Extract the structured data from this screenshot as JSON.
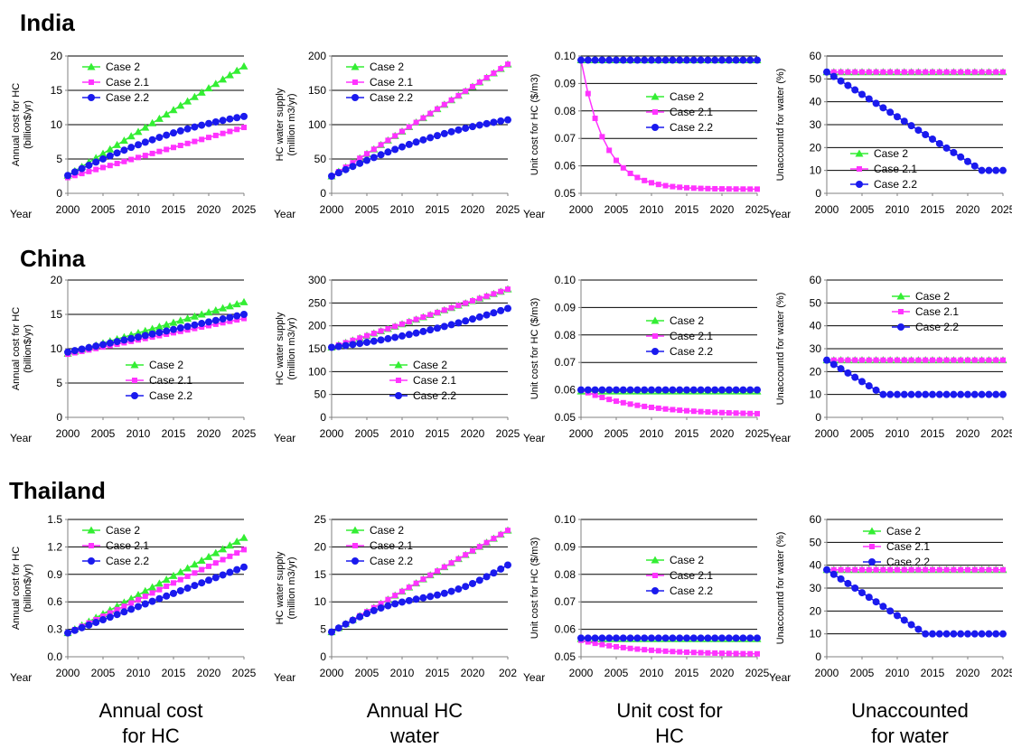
{
  "colors": {
    "case2": "#33ee33",
    "case21": "#ff33ff",
    "case22": "#1a1aee",
    "grid": "#000000",
    "axis": "#808080"
  },
  "row_titles": [
    "India",
    "China",
    "Thailand"
  ],
  "column_titles": [
    {
      "line1": "Annual cost",
      "line2": "for HC"
    },
    {
      "line1": "Annual HC",
      "line2": "water"
    },
    {
      "line1": "Unit cost for",
      "line2": "HC"
    },
    {
      "line1": "Unaccounted",
      "line2": "for water"
    }
  ],
  "chart_data": [
    {
      "id": "india-annual-cost",
      "type": "line",
      "row": 0,
      "col": 0,
      "ylabel_lines": [
        "Annual cost for HC",
        "(billion$/yr)"
      ],
      "xlabel": "Year",
      "ylim": [
        0,
        20
      ],
      "yticks": [
        "0",
        "5",
        "10",
        "15",
        "20"
      ],
      "xticks": [
        "2000",
        "2005",
        "2010",
        "2015",
        "2020",
        "2025"
      ],
      "legend": {
        "pos": "top-left"
      },
      "series": [
        {
          "name": "Case 2",
          "start": 2.6,
          "end": 18.5,
          "curve": "linear"
        },
        {
          "name": "Case 2.1",
          "start": 2.3,
          "end": 9.6,
          "curve": "linear"
        },
        {
          "name": "Case 2.2",
          "start": 2.6,
          "end": 11.2,
          "curve": "concave"
        }
      ]
    },
    {
      "id": "india-annual-water",
      "type": "line",
      "row": 0,
      "col": 1,
      "ylabel_lines": [
        "HC water supply",
        "(million m3/yr)"
      ],
      "xlabel": "Year",
      "ylim": [
        0,
        200
      ],
      "yticks": [
        "0",
        "50",
        "100",
        "150",
        "200"
      ],
      "xticks": [
        "2000",
        "2005",
        "2010",
        "2015",
        "2020",
        "2025"
      ],
      "legend": {
        "pos": "top-left"
      },
      "series": [
        {
          "name": "Case 2",
          "start": 25,
          "end": 188,
          "curve": "linear"
        },
        {
          "name": "Case 2.1",
          "start": 25,
          "end": 188,
          "curve": "linear"
        },
        {
          "name": "Case 2.2",
          "start": 25,
          "end": 107,
          "curve": "concave"
        }
      ]
    },
    {
      "id": "india-unit-cost",
      "type": "line",
      "row": 0,
      "col": 2,
      "ylabel_lines": [
        "Unit cost for HC ($/m3)"
      ],
      "xlabel": "Year",
      "ylim": [
        0.05,
        0.1
      ],
      "yticks": [
        "0.05",
        "0.06",
        "0.07",
        "0.08",
        "0.09",
        "0.10"
      ],
      "xticks": [
        "2000",
        "2005",
        "2010",
        "2015",
        "2020",
        "2025"
      ],
      "legend": {
        "pos": "right-middle"
      },
      "series": [
        {
          "name": "Case 2",
          "start": 0.0985,
          "end": 0.0985,
          "curve": "flat"
        },
        {
          "name": "Case 2.1",
          "start": 0.0985,
          "end": 0.0515,
          "curve": "decay",
          "k": 0.3
        },
        {
          "name": "Case 2.2",
          "start": 0.0985,
          "end": 0.0985,
          "curve": "flat"
        }
      ]
    },
    {
      "id": "india-unaccounted",
      "type": "line",
      "row": 0,
      "col": 3,
      "ylabel_lines": [
        "Unaccountd for water (%)"
      ],
      "xlabel": "Year",
      "ylim": [
        0,
        60
      ],
      "yticks": [
        "0",
        "10",
        "20",
        "30",
        "40",
        "50",
        "60"
      ],
      "xticks": [
        "2000",
        "2005",
        "2010",
        "2015",
        "2020",
        "2025"
      ],
      "legend": {
        "pos": "bottom-left"
      },
      "series": [
        {
          "name": "Case 2",
          "start": 53,
          "end": 53,
          "curve": "flat"
        },
        {
          "name": "Case 2.1",
          "start": 53,
          "end": 53,
          "curve": "flat"
        },
        {
          "name": "Case 2.2",
          "start": 53,
          "end": 10,
          "curve": "ramp",
          "until": 2022
        }
      ]
    },
    {
      "id": "china-annual-cost",
      "type": "line",
      "row": 1,
      "col": 0,
      "ylabel_lines": [
        "Annual cost for HC",
        "(billion$/yr)"
      ],
      "xlabel": "Year",
      "ylim": [
        0,
        20
      ],
      "yticks": [
        "0",
        "5",
        "10",
        "15",
        "20"
      ],
      "xticks": [
        "2000",
        "2005",
        "2010",
        "2015",
        "2020",
        "2025"
      ],
      "legend": {
        "pos": "bottom-middle"
      },
      "series": [
        {
          "name": "Case 2",
          "start": 9.3,
          "end": 16.8,
          "curve": "linear"
        },
        {
          "name": "Case 2.1",
          "start": 9.2,
          "end": 14.4,
          "curve": "linear"
        },
        {
          "name": "Case 2.2",
          "start": 9.5,
          "end": 15.0,
          "curve": "linear"
        }
      ]
    },
    {
      "id": "china-annual-water",
      "type": "line",
      "row": 1,
      "col": 1,
      "ylabel_lines": [
        "HC water supply",
        "(million m3/yr)"
      ],
      "xlabel": "Year",
      "ylim": [
        0,
        300
      ],
      "yticks": [
        "0",
        "50",
        "100",
        "150",
        "200",
        "250",
        "300"
      ],
      "xticks": [
        "2000",
        "2005",
        "2010",
        "2015",
        "2020",
        "2025"
      ],
      "legend": {
        "pos": "bottom-middle"
      },
      "series": [
        {
          "name": "Case 2",
          "start": 153,
          "end": 280,
          "curve": "linear"
        },
        {
          "name": "Case 2.1",
          "start": 153,
          "end": 280,
          "curve": "linear"
        },
        {
          "name": "Case 2.2",
          "start": 153,
          "end": 238,
          "curve": "convex"
        }
      ]
    },
    {
      "id": "china-unit-cost",
      "type": "line",
      "row": 1,
      "col": 2,
      "ylabel_lines": [
        "Unit cost for HC ($/m3)"
      ],
      "xlabel": "Year",
      "ylim": [
        0.05,
        0.1
      ],
      "yticks": [
        "0.05",
        "0.06",
        "0.07",
        "0.08",
        "0.09",
        "0.10"
      ],
      "xticks": [
        "2000",
        "2005",
        "2010",
        "2015",
        "2020",
        "2025"
      ],
      "legend": {
        "pos": "right-middle"
      },
      "series": [
        {
          "name": "Case 2",
          "start": 0.0595,
          "end": 0.0595,
          "curve": "flat"
        },
        {
          "name": "Case 2.1",
          "start": 0.06,
          "end": 0.0509,
          "curve": "decay",
          "k": 0.12
        },
        {
          "name": "Case 2.2",
          "start": 0.06,
          "end": 0.06,
          "curve": "flat"
        }
      ]
    },
    {
      "id": "china-unaccounted",
      "type": "line",
      "row": 1,
      "col": 3,
      "ylabel_lines": [
        "Unaccountd for water (%)"
      ],
      "xlabel": "Year",
      "ylim": [
        0,
        60
      ],
      "yticks": [
        "0",
        "10",
        "20",
        "30",
        "40",
        "50",
        "60"
      ],
      "xticks": [
        "2000",
        "2005",
        "2010",
        "2015",
        "2020",
        "2025"
      ],
      "legend": {
        "pos": "top-right"
      },
      "series": [
        {
          "name": "Case 2",
          "start": 25,
          "end": 25,
          "curve": "flat"
        },
        {
          "name": "Case 2.1",
          "start": 25,
          "end": 25,
          "curve": "flat"
        },
        {
          "name": "Case 2.2",
          "start": 25,
          "end": 10,
          "curve": "ramp",
          "until": 2008
        }
      ]
    },
    {
      "id": "thailand-annual-cost",
      "type": "line",
      "row": 2,
      "col": 0,
      "ylabel_lines": [
        "Annual cost for HC",
        "(billion$/yr)"
      ],
      "xlabel": "Year",
      "ylim": [
        0,
        1.5
      ],
      "yticks": [
        "0.0",
        "0.3",
        "0.6",
        "0.9",
        "1.2",
        "1.5"
      ],
      "xticks": [
        "2000",
        "2005",
        "2010",
        "2015",
        "2020",
        "2025"
      ],
      "legend": {
        "pos": "top-left"
      },
      "series": [
        {
          "name": "Case 2",
          "start": 0.26,
          "end": 1.3,
          "curve": "linear"
        },
        {
          "name": "Case 2.1",
          "start": 0.26,
          "end": 1.17,
          "curve": "linear"
        },
        {
          "name": "Case 2.2",
          "start": 0.26,
          "end": 0.98,
          "curve": "linear"
        }
      ]
    },
    {
      "id": "thailand-annual-water",
      "type": "line",
      "row": 2,
      "col": 1,
      "ylabel_lines": [
        "HC water supply",
        "(million m3/yr)"
      ],
      "xlabel": "Year",
      "ylim": [
        0,
        25
      ],
      "yticks": [
        "0",
        "5",
        "10",
        "15",
        "20",
        "25"
      ],
      "xticks": [
        "2000",
        "2005",
        "2010",
        "2015",
        "2020",
        "202"
      ],
      "legend": {
        "pos": "top-left"
      },
      "series": [
        {
          "name": "Case 2",
          "start": 4.5,
          "end": 23,
          "curve": "linear"
        },
        {
          "name": "Case 2.1",
          "start": 4.5,
          "end": 23,
          "curve": "linear"
        },
        {
          "name": "Case 2.2",
          "start": 4.5,
          "end": 16.7,
          "curve": "sshape"
        }
      ]
    },
    {
      "id": "thailand-unit-cost",
      "type": "line",
      "row": 2,
      "col": 2,
      "ylabel_lines": [
        "Unit cost for HC ($/m3)"
      ],
      "xlabel": "Year",
      "ylim": [
        0.05,
        0.1
      ],
      "yticks": [
        "0.05",
        "0.06",
        "0.07",
        "0.08",
        "0.09",
        "0.10"
      ],
      "xticks": [
        "2000",
        "2005",
        "2010",
        "2015",
        "2020",
        "2025"
      ],
      "legend": {
        "pos": "right-middle"
      },
      "series": [
        {
          "name": "Case 2",
          "start": 0.0565,
          "end": 0.0565,
          "curve": "flat"
        },
        {
          "name": "Case 2.1",
          "start": 0.056,
          "end": 0.0508,
          "curve": "decay",
          "k": 0.12
        },
        {
          "name": "Case 2.2",
          "start": 0.0568,
          "end": 0.0568,
          "curve": "flat"
        }
      ]
    },
    {
      "id": "thailand-unaccounted",
      "type": "line",
      "row": 2,
      "col": 3,
      "ylabel_lines": [
        "Unaccountd for water (%)"
      ],
      "xlabel": "Year",
      "ylim": [
        0,
        60
      ],
      "yticks": [
        "0",
        "10",
        "20",
        "30",
        "40",
        "50",
        "60"
      ],
      "xticks": [
        "2000",
        "2005",
        "2010",
        "2015",
        "2020",
        "2025"
      ],
      "legend": {
        "pos": "top-middle"
      },
      "series": [
        {
          "name": "Case 2",
          "start": 38,
          "end": 38,
          "curve": "flat"
        },
        {
          "name": "Case 2.1",
          "start": 38,
          "end": 38,
          "curve": "flat"
        },
        {
          "name": "Case 2.2",
          "start": 38,
          "end": 10,
          "curve": "ramp",
          "until": 2014
        }
      ]
    }
  ]
}
